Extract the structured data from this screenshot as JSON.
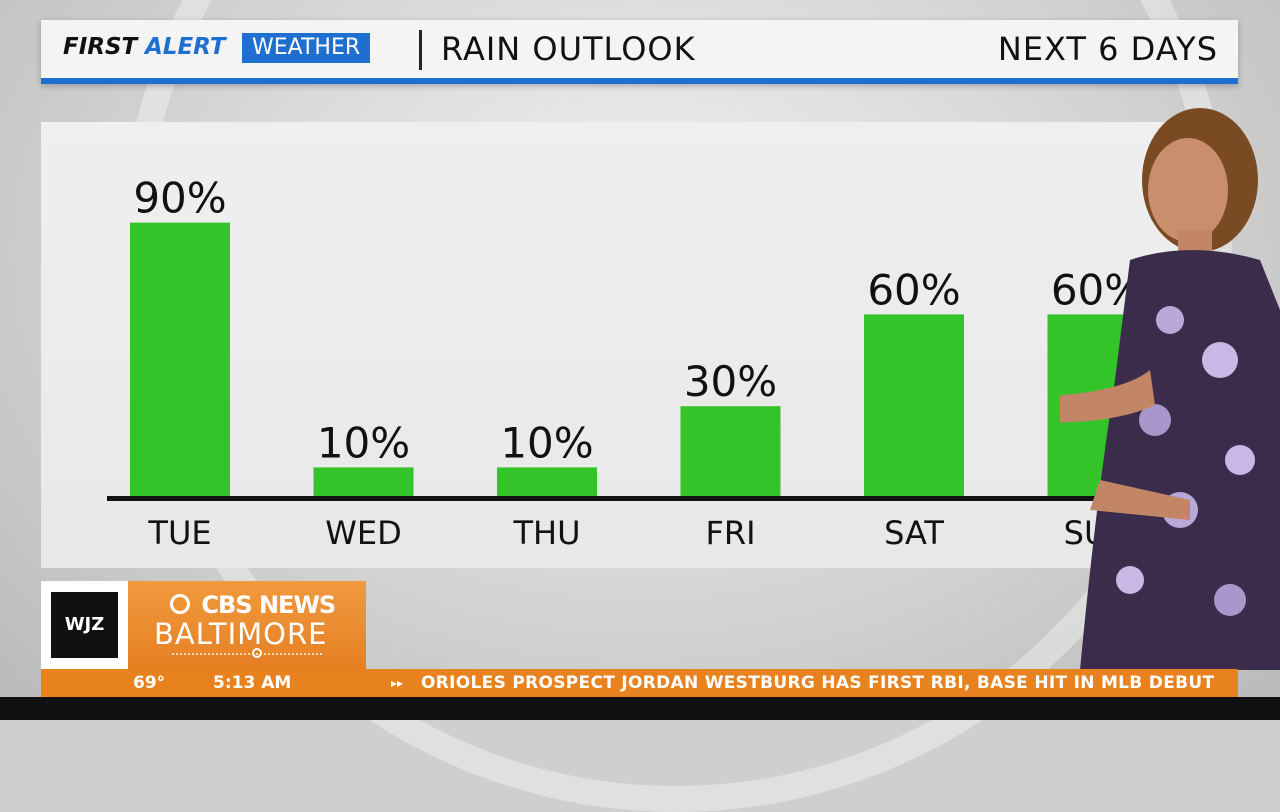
{
  "header": {
    "brand_first": "FIRST",
    "brand_alert": "ALERT",
    "brand_weather": "WEATHER",
    "title": "RAIN OUTLOOK",
    "subtitle": "NEXT 6 DAYS"
  },
  "colors": {
    "bar": "#33c42a",
    "accent_blue": "#1f6fd1",
    "ticker_orange": "#e8821f"
  },
  "chart_data": {
    "type": "bar",
    "categories": [
      "TUE",
      "WED",
      "THU",
      "FRI",
      "SAT",
      "SUN"
    ],
    "values": [
      90,
      10,
      10,
      30,
      60,
      60
    ],
    "value_labels": [
      "90%",
      "10%",
      "10%",
      "30%",
      "60%",
      "60%"
    ],
    "title": "RAIN OUTLOOK",
    "xlabel": "",
    "ylabel": "",
    "ylim": [
      0,
      100
    ],
    "grid": false
  },
  "lower_third": {
    "station_logo": "WJZ",
    "network": "CBS NEWS",
    "city": "BALTIMORE"
  },
  "ticker": {
    "temperature": "69°",
    "time": "5:13 AM",
    "arrows": "▸▸",
    "headline": "ORIOLES PROSPECT JORDAN WESTBURG HAS FIRST RBI, BASE HIT IN MLB DEBUT"
  }
}
